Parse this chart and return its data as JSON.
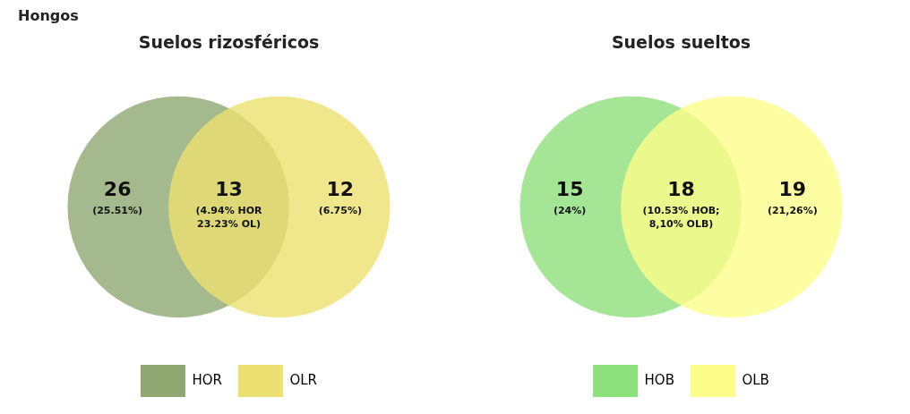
{
  "chart_data": [
    {
      "type": "other",
      "title": "Suelos rizosféricos",
      "annotations": [
        "Hongos"
      ],
      "categories": [
        "(25.51%)",
        "(4.94% HOR\n23.23% OL)",
        "(6.75%)"
      ],
      "data_labels": true,
      "legend": "bottom",
      "series": [
        {
          "name": "HOR",
          "color": "#8fa872",
          "values": [
            26,
            null,
            null
          ]
        },
        {
          "name": "OLR",
          "color": "#ece170",
          "values": [
            null,
            13,
            12
          ]
        }
      ]
    },
    {
      "type": "other",
      "title": "Suelos sueltos",
      "categories": [
        "(24%)",
        "(10.53% HOB;\n8,10% OLB)",
        "(21,26%)"
      ],
      "data_labels": true,
      "legend": "bottom",
      "series": [
        {
          "name": "HOB",
          "color": "#8ee07c",
          "values": [
            15,
            null,
            null
          ]
        },
        {
          "name": "OLB",
          "color": "#fcfc8a",
          "values": [
            null,
            18,
            19
          ]
        }
      ]
    }
  ]
}
